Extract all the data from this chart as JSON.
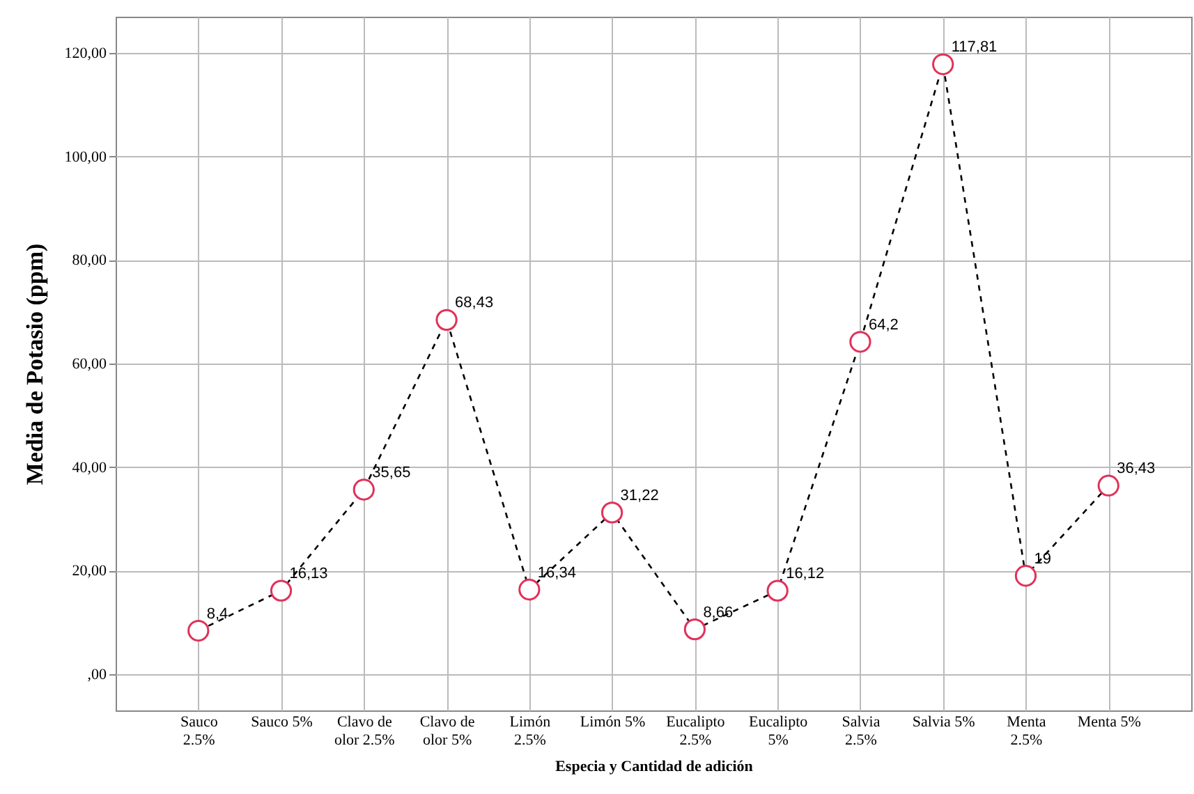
{
  "chart_data": {
    "type": "line",
    "xlabel": "Especia y Cantidad de adición",
    "ylabel": "Media de Potasio (ppm)",
    "categories": [
      "Sauco 2.5%",
      "Sauco 5%",
      "Clavo de olor 2.5%",
      "Clavo de olor 5%",
      "Limón 2.5%",
      "Limón 5%",
      "Eucalipto 2.5%",
      "Eucalipto 5%",
      "Salvia 2.5%",
      "Salvia 5%",
      "Menta 2.5%",
      "Menta 5%"
    ],
    "series": [
      {
        "color": "#e0325a",
        "values": [
          8.4,
          16.13,
          35.65,
          68.43,
          16.34,
          31.22,
          8.66,
          16.12,
          64.2,
          117.81,
          19,
          36.43
        ],
        "value_labels": [
          "8,4",
          "16,13",
          "35,65",
          "68,43",
          "16,34",
          "31,22",
          "8,66",
          "16,12",
          "64,2",
          "117,81",
          "19",
          "36,43"
        ]
      }
    ],
    "ylim": [
      -7,
      127
    ],
    "yticks": [
      {
        "value": 0,
        "label": ",00"
      },
      {
        "value": 20,
        "label": "20,00"
      },
      {
        "value": 40,
        "label": "40,00"
      },
      {
        "value": 60,
        "label": "60,00"
      },
      {
        "value": 80,
        "label": "80,00"
      },
      {
        "value": 100,
        "label": "100,00"
      },
      {
        "value": 120,
        "label": "120,00"
      }
    ],
    "grid": true,
    "marker": "circle",
    "line_style": "dashed"
  }
}
